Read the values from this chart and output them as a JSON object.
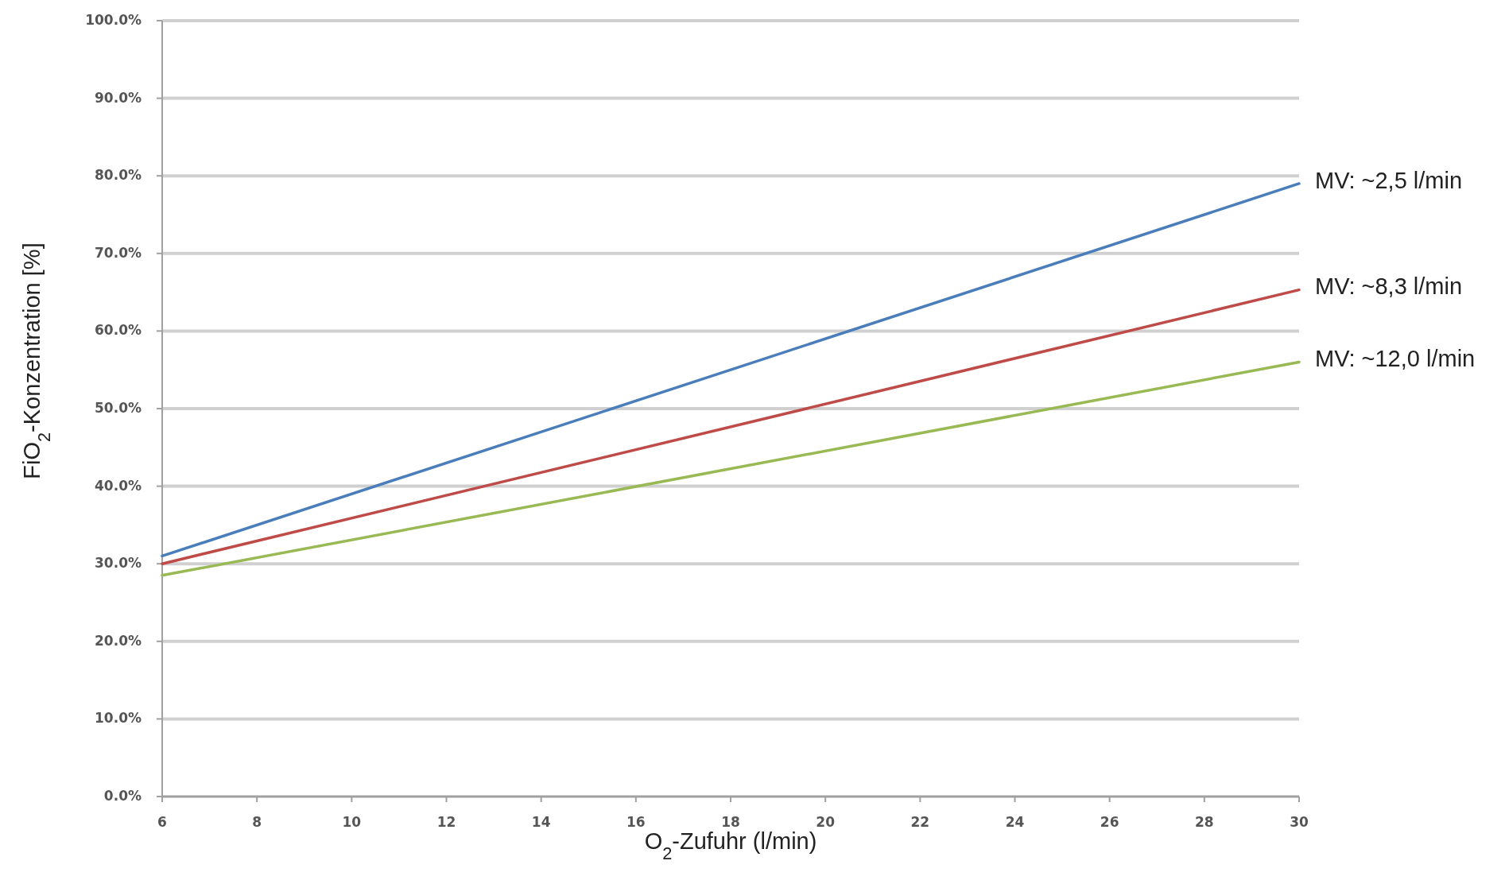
{
  "chart_data": {
    "type": "line",
    "xlabel": "O$_{2}$-Zufuhr (l/min)",
    "ylabel": "FiO$_{2}$-Konzentration [%]",
    "x": [
      6,
      30
    ],
    "series": [
      {
        "name": "MV: ~2,5 l/min",
        "color": "#4a7ebb",
        "values": [
          31,
          79
        ]
      },
      {
        "name": "MV: ~8,3 l/min",
        "color": "#be4b48",
        "values": [
          30,
          65.3
        ]
      },
      {
        "name": "MV: ~12,0 l/min",
        "color": "#98b954",
        "values": [
          28.5,
          56
        ]
      }
    ],
    "xlim": [
      6,
      30
    ],
    "xticks": [
      6,
      8,
      10,
      12,
      14,
      16,
      18,
      20,
      22,
      24,
      26,
      28,
      30
    ],
    "ylim": [
      0,
      100
    ],
    "yticks": [
      {
        "value": 0,
        "label": "0.0%"
      },
      {
        "value": 10,
        "label": "10.0%"
      },
      {
        "value": 20,
        "label": "20.0%"
      },
      {
        "value": 30,
        "label": "30.0%"
      },
      {
        "value": 40,
        "label": "40.0%"
      },
      {
        "value": 50,
        "label": "50.0%"
      },
      {
        "value": 60,
        "label": "60.0%"
      },
      {
        "value": 70,
        "label": "70.0%"
      },
      {
        "value": 80,
        "label": "80.0%"
      },
      {
        "value": 90,
        "label": "90.0%"
      },
      {
        "value": 100,
        "label": "100.0%"
      }
    ],
    "grid": "y",
    "marker": "none",
    "line_style": "solid"
  }
}
